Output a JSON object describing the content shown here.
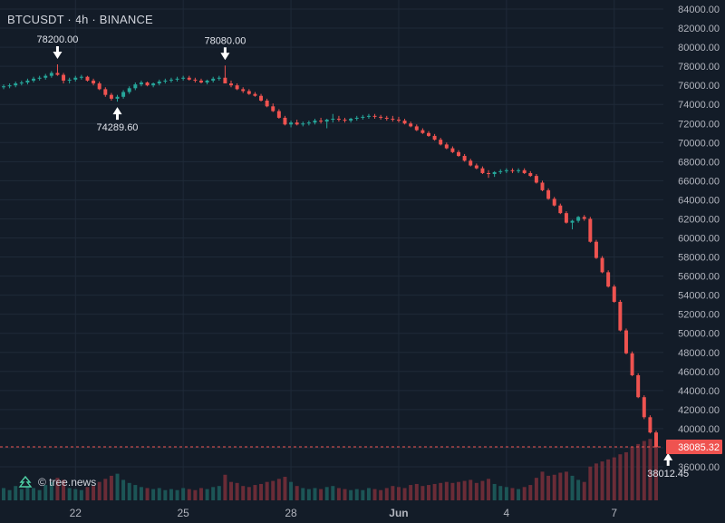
{
  "chart_data": {
    "type": "candlestick",
    "title": "BTCUSDT · 4h · BINANCE",
    "watermark": "© tree.news",
    "colors": {
      "background": "#131c28",
      "up": "#26a69a",
      "down": "#ef5350",
      "up_volume": "#1f5f5e",
      "down_volume": "#7a2f3a",
      "grid": "#1f2a38",
      "price_line": "#ef5350"
    },
    "ylim": [
      36000,
      84000
    ],
    "y_ticks": [
      "84000.00",
      "82000.00",
      "80000.00",
      "78000.00",
      "76000.00",
      "74000.00",
      "72000.00",
      "70000.00",
      "68000.00",
      "66000.00",
      "64000.00",
      "62000.00",
      "60000.00",
      "58000.00",
      "56000.00",
      "54000.00",
      "52000.00",
      "50000.00",
      "48000.00",
      "46000.00",
      "44000.00",
      "42000.00",
      "40000.00",
      "38000.00",
      "36000.00"
    ],
    "x_ticks": [
      {
        "label": "22",
        "index": 12
      },
      {
        "label": "25",
        "index": 30
      },
      {
        "label": "28",
        "index": 48
      },
      {
        "label": "Jun",
        "index": 66
      },
      {
        "label": "4",
        "index": 84
      },
      {
        "label": "7",
        "index": 102
      }
    ],
    "last_price": "38085.32",
    "annotations": [
      {
        "label": "78200.00",
        "index": 9,
        "value": 78200,
        "position": "above"
      },
      {
        "label": "74289.60",
        "index": 19,
        "value": 74289.6,
        "position": "below"
      },
      {
        "label": "78080.00",
        "index": 37,
        "value": 78080,
        "position": "above"
      },
      {
        "label": "38012.45",
        "index": 111,
        "value": 38012.45,
        "position": "below"
      }
    ],
    "candles": [
      [
        75800,
        76100,
        75600,
        75900,
        12
      ],
      [
        75900,
        76200,
        75700,
        76000,
        10
      ],
      [
        76000,
        76400,
        75800,
        76200,
        14
      ],
      [
        76200,
        76500,
        76000,
        76300,
        11
      ],
      [
        76300,
        76700,
        76100,
        76500,
        13
      ],
      [
        76500,
        76900,
        76300,
        76700,
        12
      ],
      [
        76700,
        77000,
        76500,
        76800,
        10
      ],
      [
        76800,
        77200,
        76600,
        77000,
        15
      ],
      [
        77000,
        77500,
        76800,
        77300,
        18
      ],
      [
        77300,
        78200,
        77000,
        77100,
        22
      ],
      [
        77100,
        77300,
        76200,
        76500,
        20
      ],
      [
        76500,
        76800,
        76200,
        76600,
        12
      ],
      [
        76600,
        77000,
        76400,
        76800,
        11
      ],
      [
        76800,
        77100,
        76600,
        76900,
        10
      ],
      [
        76900,
        77000,
        76400,
        76500,
        13
      ],
      [
        76500,
        76700,
        76000,
        76200,
        14
      ],
      [
        76200,
        76400,
        75500,
        75600,
        18
      ],
      [
        75600,
        75800,
        74800,
        75000,
        21
      ],
      [
        75000,
        75200,
        74400,
        74600,
        24
      ],
      [
        74600,
        75000,
        74290,
        74800,
        26
      ],
      [
        74800,
        75500,
        74600,
        75300,
        20
      ],
      [
        75300,
        75900,
        75100,
        75700,
        17
      ],
      [
        75700,
        76300,
        75500,
        76100,
        15
      ],
      [
        76100,
        76500,
        75900,
        76300,
        13
      ],
      [
        76300,
        76400,
        75900,
        76000,
        12
      ],
      [
        76000,
        76300,
        75800,
        76200,
        11
      ],
      [
        76200,
        76600,
        76000,
        76400,
        12
      ],
      [
        76400,
        76700,
        76200,
        76500,
        10
      ],
      [
        76500,
        76800,
        76300,
        76600,
        11
      ],
      [
        76600,
        76900,
        76400,
        76700,
        10
      ],
      [
        76700,
        77000,
        76500,
        76800,
        12
      ],
      [
        76800,
        77000,
        76500,
        76600,
        11
      ],
      [
        76600,
        76800,
        76300,
        76500,
        10
      ],
      [
        76500,
        76700,
        76200,
        76300,
        12
      ],
      [
        76300,
        76600,
        76100,
        76500,
        11
      ],
      [
        76500,
        76900,
        76300,
        76700,
        13
      ],
      [
        76700,
        77000,
        76500,
        76800,
        14
      ],
      [
        76800,
        78080,
        76500,
        76200,
        25
      ],
      [
        76200,
        76500,
        75800,
        76000,
        18
      ],
      [
        76000,
        76200,
        75500,
        75600,
        17
      ],
      [
        75600,
        75800,
        75200,
        75400,
        14
      ],
      [
        75400,
        75600,
        75000,
        75100,
        13
      ],
      [
        75100,
        75300,
        74800,
        74900,
        15
      ],
      [
        74900,
        75100,
        74300,
        74400,
        16
      ],
      [
        74400,
        74600,
        73700,
        73800,
        18
      ],
      [
        73800,
        74100,
        73200,
        73300,
        19
      ],
      [
        73300,
        73500,
        72500,
        72600,
        21
      ],
      [
        72600,
        72800,
        71800,
        71900,
        23
      ],
      [
        71900,
        72300,
        71600,
        72100,
        18
      ],
      [
        72100,
        72400,
        71800,
        71900,
        14
      ],
      [
        71900,
        72200,
        71700,
        72000,
        12
      ],
      [
        72000,
        72300,
        71800,
        72100,
        11
      ],
      [
        72100,
        72500,
        71900,
        72300,
        12
      ],
      [
        72300,
        72600,
        72000,
        72200,
        11
      ],
      [
        72200,
        72500,
        71500,
        72400,
        13
      ],
      [
        72400,
        73000,
        72100,
        72500,
        14
      ],
      [
        72500,
        72800,
        72200,
        72400,
        12
      ],
      [
        72400,
        72600,
        72100,
        72300,
        11
      ],
      [
        72300,
        72600,
        72100,
        72500,
        10
      ],
      [
        72500,
        72800,
        72300,
        72600,
        11
      ],
      [
        72600,
        72900,
        72400,
        72700,
        10
      ],
      [
        72700,
        73000,
        72500,
        72800,
        12
      ],
      [
        72800,
        73000,
        72500,
        72700,
        11
      ],
      [
        72700,
        72900,
        72400,
        72600,
        10
      ],
      [
        72600,
        72800,
        72300,
        72500,
        12
      ],
      [
        72500,
        72800,
        72200,
        72400,
        14
      ],
      [
        72400,
        72700,
        72100,
        72300,
        13
      ],
      [
        72300,
        72500,
        71900,
        72000,
        12
      ],
      [
        72000,
        72200,
        71600,
        71700,
        15
      ],
      [
        71700,
        71900,
        71200,
        71300,
        16
      ],
      [
        71300,
        71500,
        70900,
        71000,
        14
      ],
      [
        71000,
        71200,
        70600,
        70700,
        15
      ],
      [
        70700,
        70900,
        70200,
        70300,
        16
      ],
      [
        70300,
        70500,
        69700,
        69800,
        17
      ],
      [
        69800,
        70000,
        69300,
        69400,
        18
      ],
      [
        69400,
        69600,
        68900,
        69000,
        17
      ],
      [
        69000,
        69200,
        68500,
        68600,
        18
      ],
      [
        68600,
        68800,
        68000,
        68100,
        19
      ],
      [
        68100,
        68300,
        67500,
        67600,
        20
      ],
      [
        67600,
        67800,
        67200,
        67300,
        17
      ],
      [
        67300,
        67500,
        66700,
        66800,
        19
      ],
      [
        66800,
        67100,
        66300,
        66700,
        21
      ],
      [
        66700,
        67000,
        66400,
        66900,
        16
      ],
      [
        66900,
        67200,
        66700,
        67000,
        14
      ],
      [
        67000,
        67300,
        66800,
        67100,
        13
      ],
      [
        67100,
        67300,
        66800,
        67000,
        12
      ],
      [
        67000,
        67300,
        66800,
        67100,
        11
      ],
      [
        67100,
        67300,
        66700,
        66800,
        13
      ],
      [
        66800,
        67000,
        66400,
        66500,
        15
      ],
      [
        66500,
        66700,
        65700,
        65800,
        22
      ],
      [
        65800,
        66000,
        64900,
        65000,
        28
      ],
      [
        65000,
        65200,
        64000,
        64100,
        24
      ],
      [
        64100,
        64300,
        63300,
        63400,
        25
      ],
      [
        63400,
        63600,
        62500,
        62600,
        27
      ],
      [
        62600,
        62800,
        61500,
        61600,
        28
      ],
      [
        61600,
        61900,
        60900,
        61800,
        24
      ],
      [
        61800,
        62300,
        61600,
        62200,
        20
      ],
      [
        62200,
        62400,
        61800,
        62000,
        18
      ],
      [
        62000,
        62200,
        59500,
        59600,
        33
      ],
      [
        59600,
        59800,
        57800,
        57900,
        36
      ],
      [
        57900,
        58100,
        56300,
        56400,
        38
      ],
      [
        56400,
        56600,
        54800,
        54900,
        40
      ],
      [
        54900,
        55100,
        53200,
        53300,
        42
      ],
      [
        53300,
        53500,
        50200,
        50300,
        45
      ],
      [
        50300,
        50500,
        47800,
        47900,
        47
      ],
      [
        47900,
        48100,
        45500,
        45600,
        52
      ],
      [
        45600,
        45800,
        43200,
        43300,
        55
      ],
      [
        43300,
        43500,
        41000,
        41200,
        58
      ],
      [
        41200,
        41400,
        39500,
        39600,
        60
      ],
      [
        39600,
        39800,
        38012.45,
        38085.32,
        62
      ]
    ]
  }
}
